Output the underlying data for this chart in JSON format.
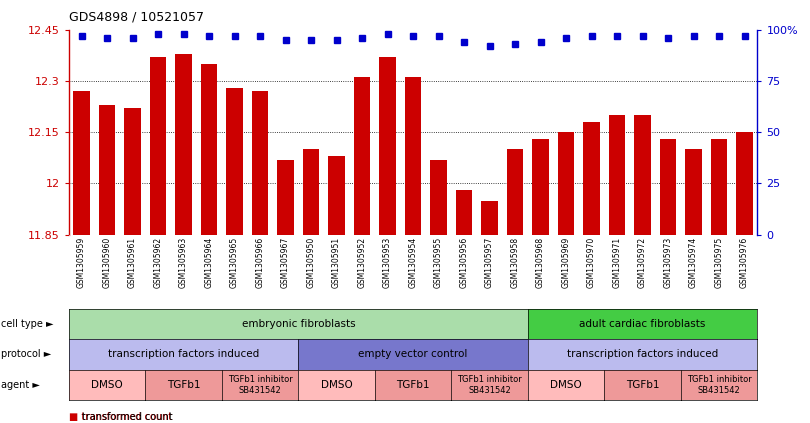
{
  "title": "GDS4898 / 10521057",
  "samples": [
    "GSM1305959",
    "GSM1305960",
    "GSM1305961",
    "GSM1305962",
    "GSM1305963",
    "GSM1305964",
    "GSM1305965",
    "GSM1305966",
    "GSM1305967",
    "GSM1305950",
    "GSM1305951",
    "GSM1305952",
    "GSM1305953",
    "GSM1305954",
    "GSM1305955",
    "GSM1305956",
    "GSM1305957",
    "GSM1305958",
    "GSM1305968",
    "GSM1305969",
    "GSM1305970",
    "GSM1305971",
    "GSM1305972",
    "GSM1305973",
    "GSM1305974",
    "GSM1305975",
    "GSM1305976"
  ],
  "bar_values": [
    12.27,
    12.23,
    12.22,
    12.37,
    12.38,
    12.35,
    12.28,
    12.27,
    12.07,
    12.1,
    12.08,
    12.31,
    12.37,
    12.31,
    12.07,
    11.98,
    11.95,
    12.1,
    12.13,
    12.15,
    12.18,
    12.2,
    12.2,
    12.13,
    12.1,
    12.13,
    12.15
  ],
  "percentile_values": [
    97,
    96,
    96,
    98,
    98,
    97,
    97,
    97,
    95,
    95,
    95,
    96,
    98,
    97,
    97,
    94,
    92,
    93,
    94,
    96,
    97,
    97,
    97,
    96,
    97,
    97,
    97
  ],
  "ymin": 11.85,
  "ymax": 12.45,
  "yticks": [
    11.85,
    12.0,
    12.15,
    12.3,
    12.45
  ],
  "ytick_labels": [
    "11.85",
    "12",
    "12.15",
    "12.3",
    "12.45"
  ],
  "bar_color": "#cc0000",
  "percentile_color": "#0000cc",
  "cell_type_rows": [
    {
      "label": "embryonic fibroblasts",
      "start": 0,
      "end": 17,
      "color": "#aaddaa"
    },
    {
      "label": "adult cardiac fibroblasts",
      "start": 18,
      "end": 26,
      "color": "#44cc44"
    }
  ],
  "protocol_rows": [
    {
      "label": "transcription factors induced",
      "start": 0,
      "end": 8,
      "color": "#bbbbee"
    },
    {
      "label": "empty vector control",
      "start": 9,
      "end": 17,
      "color": "#7777cc"
    },
    {
      "label": "transcription factors induced",
      "start": 18,
      "end": 26,
      "color": "#bbbbee"
    }
  ],
  "agent_rows": [
    {
      "label": "DMSO",
      "start": 0,
      "end": 2,
      "color": "#ffbbbb"
    },
    {
      "label": "TGFb1",
      "start": 3,
      "end": 5,
      "color": "#ee9999"
    },
    {
      "label": "TGFb1 inhibitor\nSB431542",
      "start": 6,
      "end": 8,
      "color": "#ee9999"
    },
    {
      "label": "DMSO",
      "start": 9,
      "end": 11,
      "color": "#ffbbbb"
    },
    {
      "label": "TGFb1",
      "start": 12,
      "end": 14,
      "color": "#ee9999"
    },
    {
      "label": "TGFb1 inhibitor\nSB431542",
      "start": 15,
      "end": 17,
      "color": "#ee9999"
    },
    {
      "label": "DMSO",
      "start": 18,
      "end": 20,
      "color": "#ffbbbb"
    },
    {
      "label": "TGFb1",
      "start": 21,
      "end": 23,
      "color": "#ee9999"
    },
    {
      "label": "TGFb1 inhibitor\nSB431542",
      "start": 24,
      "end": 26,
      "color": "#ee9999"
    }
  ],
  "row_labels": [
    "cell type",
    "protocol",
    "agent"
  ],
  "grid_yticks": [
    12.0,
    12.15,
    12.3
  ]
}
